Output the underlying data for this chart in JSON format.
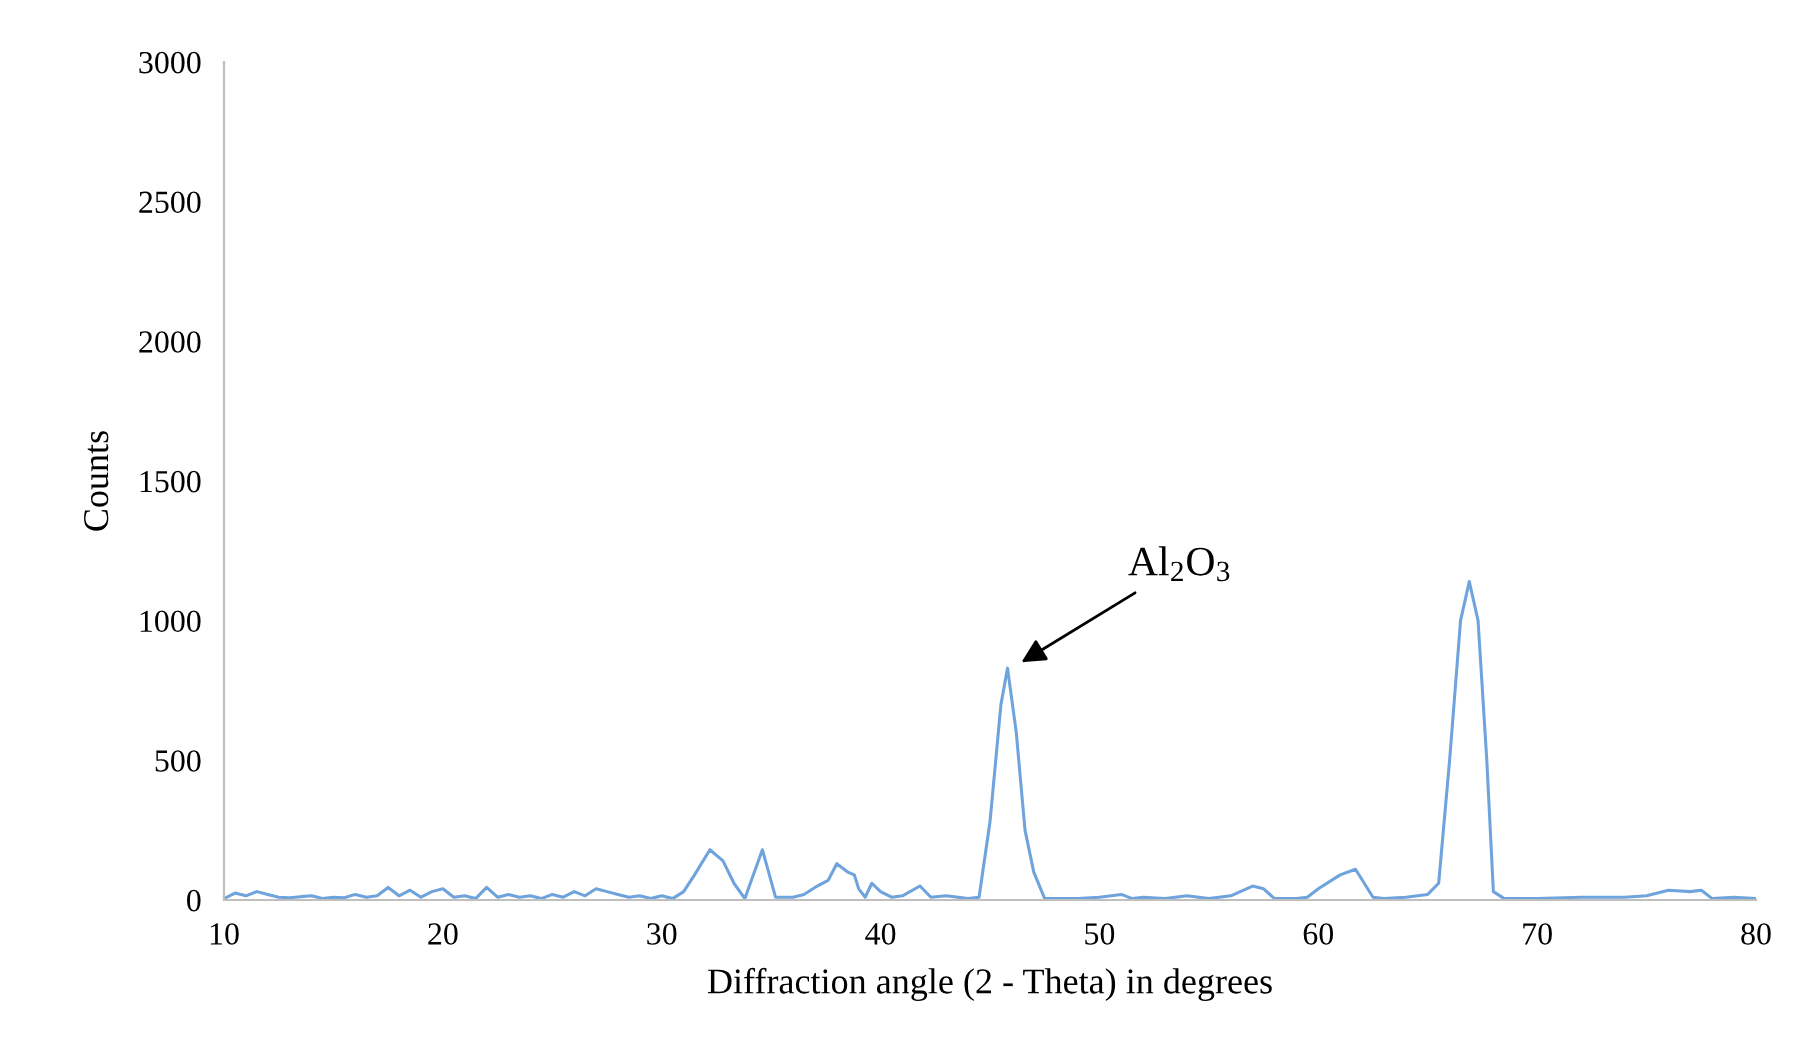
{
  "chart_data": {
    "type": "line",
    "xlabel": "Diffraction angle (2 - Theta) in degrees",
    "ylabel": "Counts",
    "xlim": [
      10,
      80
    ],
    "xticks": [
      10,
      20,
      30,
      40,
      50,
      60,
      70,
      80
    ],
    "ylim": [
      0,
      3000
    ],
    "yticks": [
      0,
      500,
      1000,
      1500,
      2000,
      2500,
      3000
    ],
    "grid": false,
    "marker": "none",
    "line_style": "solid",
    "annotations": [
      {
        "text": "Al$_{2}$O$_{3}$",
        "x": 46,
        "y": 830
      }
    ],
    "series": [
      {
        "color": "#6fa3dc",
        "x": [
          10,
          10.5,
          11,
          11.5,
          12,
          12.5,
          13,
          13.5,
          14,
          14.5,
          15,
          15.5,
          16,
          16.5,
          17,
          17.5,
          18,
          18.5,
          19,
          19.5,
          20,
          20.5,
          21,
          21.5,
          22,
          22.5,
          23,
          23.5,
          24,
          24.5,
          25,
          25.5,
          26,
          26.5,
          27,
          27.5,
          28,
          28.5,
          29,
          29.5,
          30,
          30.5,
          31,
          31.5,
          32.2,
          32.8,
          33.3,
          33.8,
          34.6,
          35.2,
          36,
          36.5,
          37,
          37.6,
          38,
          38.5,
          38.8,
          39,
          39.3,
          39.6,
          40,
          40.5,
          41,
          41.8,
          42.3,
          43,
          44,
          44.5,
          45,
          45.5,
          45.8,
          46.2,
          46.6,
          47,
          47.5,
          48,
          49,
          50,
          51,
          51.5,
          52,
          53,
          54,
          55,
          56,
          57,
          57.5,
          58,
          59,
          59.5,
          60,
          61,
          61.7,
          62.5,
          63,
          64,
          65,
          65.5,
          66,
          66.5,
          66.9,
          67.3,
          67.7,
          68,
          68.5,
          70,
          72,
          74,
          75,
          76,
          77,
          77.5,
          78,
          79,
          80
        ],
        "values": [
          5,
          25,
          15,
          30,
          20,
          10,
          8,
          12,
          15,
          5,
          10,
          8,
          20,
          10,
          15,
          45,
          15,
          35,
          10,
          30,
          40,
          10,
          15,
          5,
          45,
          10,
          20,
          10,
          15,
          5,
          20,
          10,
          30,
          15,
          40,
          30,
          20,
          10,
          15,
          5,
          15,
          5,
          30,
          90,
          180,
          140,
          60,
          5,
          180,
          10,
          10,
          20,
          45,
          70,
          130,
          100,
          90,
          40,
          10,
          60,
          30,
          10,
          15,
          50,
          10,
          15,
          5,
          10,
          280,
          700,
          830,
          600,
          250,
          100,
          5,
          5,
          5,
          10,
          20,
          5,
          10,
          5,
          15,
          5,
          15,
          50,
          40,
          5,
          5,
          10,
          40,
          90,
          110,
          10,
          5,
          10,
          20,
          60,
          500,
          1000,
          1140,
          1000,
          500,
          30,
          5,
          5,
          10,
          10,
          15,
          35,
          30,
          35,
          5,
          10,
          5
        ]
      }
    ]
  }
}
